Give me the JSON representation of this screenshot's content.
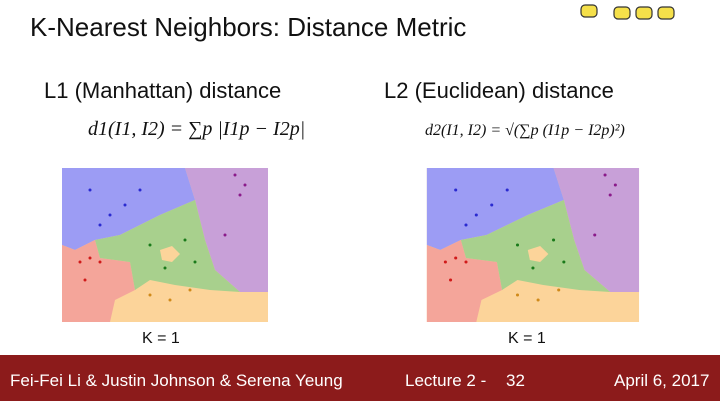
{
  "title": "K-Nearest Neighbors: Distance Metric",
  "left": {
    "heading": "L1 (Manhattan) distance",
    "formula": "d1(I1, I2) = ∑p |I1p − I2p|",
    "caption": "K = 1"
  },
  "right": {
    "heading": "L2 (Euclidean) distance",
    "formula": "d2(I1, I2) = √(∑p (I1p − I2p)²)",
    "caption": "K = 1"
  },
  "footer": {
    "authors": "Fei-Fei Li & Justin Johnson & Serena Yeung",
    "lecture": "Lecture 2 -",
    "page": "32",
    "date": "April 6, 2017"
  }
}
